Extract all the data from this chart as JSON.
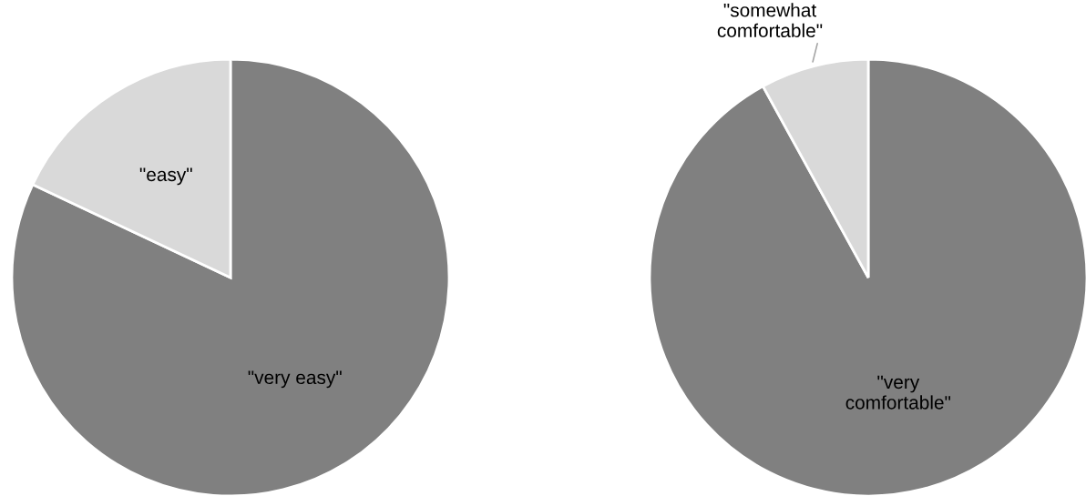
{
  "chart_data": [
    {
      "type": "pie",
      "categories": [
        "\"very easy\"",
        "\"easy\""
      ],
      "values": [
        82,
        18
      ],
      "colors": [
        "#808080",
        "#d9d9d9"
      ]
    },
    {
      "type": "pie",
      "categories": [
        "\"very comfortable\"",
        "\"somewhat comfortable\""
      ],
      "values": [
        92,
        8
      ],
      "colors": [
        "#808080",
        "#d9d9d9"
      ]
    }
  ]
}
